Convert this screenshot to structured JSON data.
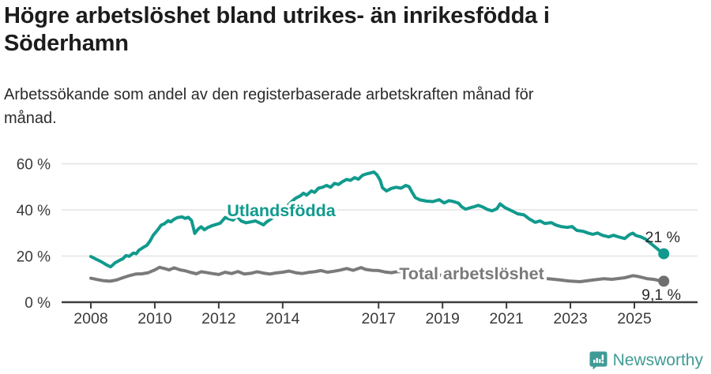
{
  "header": {
    "title": "Högre arbetslöshet bland utrikes- än inrikesfödda i Söderhamn",
    "title_lines": [
      "Högre arbetslöshet bland utrikes- än inrikesfödda i",
      "Söderhamn"
    ],
    "subtitle": "Arbetssökande som andel av den registerbaserade arbetskraften månad för månad.",
    "subtitle_lines": [
      "Arbetssökande som andel av den registerbaserade arbetskraften månad för",
      "månad."
    ]
  },
  "footer": {
    "brand": "Newsworthy"
  },
  "chart_data": {
    "type": "line",
    "unit": "%",
    "grid": true,
    "xlim": [
      2007.6,
      2026.3
    ],
    "ylim": [
      0,
      60
    ],
    "x_ticks": [
      {
        "v": 2008,
        "label": "2008"
      },
      {
        "v": 2010,
        "label": "2010"
      },
      {
        "v": 2012,
        "label": "2012"
      },
      {
        "v": 2014,
        "label": "2014"
      },
      {
        "v": 2017,
        "label": "2017"
      },
      {
        "v": 2019,
        "label": "2019"
      },
      {
        "v": 2021,
        "label": "2021"
      },
      {
        "v": 2023,
        "label": "2023"
      },
      {
        "v": 2025,
        "label": "2025"
      }
    ],
    "y_ticks": [
      {
        "v": 0,
        "label": "0 %"
      },
      {
        "v": 20,
        "label": "20 %"
      },
      {
        "v": 40,
        "label": "40 %"
      },
      {
        "v": 60,
        "label": "60 %"
      }
    ],
    "colors": {
      "foreign_born": "#109a8d",
      "total": "#7a7a7a",
      "grid": "#e3e3e3",
      "axis": "#3d3d3d",
      "tick_text": "#3a3a3a",
      "end_label_text": "#2a2a2a",
      "end_dot_total": "#6f6f6f",
      "brand_teal": "#3f9b95"
    },
    "series": [
      {
        "name": "Utlandsfödda",
        "color": "#109a8d",
        "end_label": "21 %",
        "latest_value": 21,
        "points": [
          [
            2008.0,
            19.8
          ],
          [
            2008.17,
            18.6
          ],
          [
            2008.33,
            17.5
          ],
          [
            2008.5,
            16.1
          ],
          [
            2008.62,
            15.3
          ],
          [
            2008.75,
            17.0
          ],
          [
            2008.92,
            18.3
          ],
          [
            2009.0,
            18.8
          ],
          [
            2009.1,
            20.2
          ],
          [
            2009.2,
            19.9
          ],
          [
            2009.33,
            21.3
          ],
          [
            2009.42,
            21.0
          ],
          [
            2009.5,
            22.5
          ],
          [
            2009.67,
            24.0
          ],
          [
            2009.75,
            24.6
          ],
          [
            2009.85,
            26.5
          ],
          [
            2009.95,
            29.0
          ],
          [
            2010.1,
            31.5
          ],
          [
            2010.2,
            33.4
          ],
          [
            2010.3,
            34.0
          ],
          [
            2010.42,
            35.3
          ],
          [
            2010.5,
            34.8
          ],
          [
            2010.6,
            35.9
          ],
          [
            2010.7,
            36.6
          ],
          [
            2010.85,
            37.0
          ],
          [
            2010.95,
            36.3
          ],
          [
            2011.05,
            36.8
          ],
          [
            2011.15,
            35.4
          ],
          [
            2011.25,
            29.8
          ],
          [
            2011.35,
            31.6
          ],
          [
            2011.45,
            32.7
          ],
          [
            2011.55,
            31.4
          ],
          [
            2011.65,
            32.3
          ],
          [
            2011.8,
            33.2
          ],
          [
            2011.95,
            33.8
          ],
          [
            2012.05,
            34.3
          ],
          [
            2012.2,
            36.7
          ],
          [
            2012.35,
            36.0
          ],
          [
            2012.45,
            35.6
          ],
          [
            2012.57,
            37.3
          ],
          [
            2012.7,
            35.2
          ],
          [
            2012.85,
            34.4
          ],
          [
            2013.0,
            34.8
          ],
          [
            2013.15,
            35.2
          ],
          [
            2013.3,
            34.2
          ],
          [
            2013.4,
            33.5
          ],
          [
            2013.5,
            34.8
          ],
          [
            2013.65,
            36.2
          ],
          [
            2013.8,
            37.6
          ],
          [
            2013.95,
            39.2
          ],
          [
            2014.1,
            41.0
          ],
          [
            2014.25,
            43.2
          ],
          [
            2014.4,
            45.0
          ],
          [
            2014.55,
            46.1
          ],
          [
            2014.65,
            47.2
          ],
          [
            2014.75,
            46.4
          ],
          [
            2014.9,
            48.2
          ],
          [
            2015.0,
            47.6
          ],
          [
            2015.12,
            49.4
          ],
          [
            2015.25,
            49.8
          ],
          [
            2015.37,
            50.6
          ],
          [
            2015.5,
            49.8
          ],
          [
            2015.62,
            51.5
          ],
          [
            2015.75,
            51.0
          ],
          [
            2015.87,
            52.2
          ],
          [
            2016.0,
            53.2
          ],
          [
            2016.12,
            52.8
          ],
          [
            2016.25,
            54.0
          ],
          [
            2016.37,
            53.3
          ],
          [
            2016.5,
            55.0
          ],
          [
            2016.62,
            55.6
          ],
          [
            2016.75,
            56.0
          ],
          [
            2016.85,
            56.4
          ],
          [
            2016.95,
            55.2
          ],
          [
            2017.05,
            52.8
          ],
          [
            2017.12,
            49.6
          ],
          [
            2017.25,
            48.2
          ],
          [
            2017.4,
            49.3
          ],
          [
            2017.55,
            49.8
          ],
          [
            2017.7,
            49.4
          ],
          [
            2017.85,
            50.6
          ],
          [
            2017.95,
            50.1
          ],
          [
            2018.05,
            47.6
          ],
          [
            2018.15,
            45.3
          ],
          [
            2018.3,
            44.3
          ],
          [
            2018.5,
            43.8
          ],
          [
            2018.7,
            43.6
          ],
          [
            2018.9,
            44.4
          ],
          [
            2019.05,
            43.0
          ],
          [
            2019.2,
            44.0
          ],
          [
            2019.35,
            43.6
          ],
          [
            2019.5,
            42.9
          ],
          [
            2019.6,
            41.3
          ],
          [
            2019.72,
            40.3
          ],
          [
            2019.88,
            41.0
          ],
          [
            2020.0,
            41.4
          ],
          [
            2020.12,
            42.0
          ],
          [
            2020.25,
            41.3
          ],
          [
            2020.4,
            40.2
          ],
          [
            2020.55,
            39.6
          ],
          [
            2020.7,
            40.5
          ],
          [
            2020.8,
            42.6
          ],
          [
            2020.95,
            41.0
          ],
          [
            2021.15,
            39.7
          ],
          [
            2021.35,
            38.3
          ],
          [
            2021.55,
            37.8
          ],
          [
            2021.7,
            36.2
          ],
          [
            2021.9,
            34.6
          ],
          [
            2022.05,
            35.2
          ],
          [
            2022.2,
            34.1
          ],
          [
            2022.4,
            34.5
          ],
          [
            2022.55,
            33.4
          ],
          [
            2022.7,
            32.8
          ],
          [
            2022.9,
            32.4
          ],
          [
            2023.05,
            32.8
          ],
          [
            2023.2,
            31.1
          ],
          [
            2023.4,
            30.7
          ],
          [
            2023.55,
            30.0
          ],
          [
            2023.7,
            29.4
          ],
          [
            2023.85,
            30.0
          ],
          [
            2024.0,
            29.0
          ],
          [
            2024.2,
            28.3
          ],
          [
            2024.35,
            29.0
          ],
          [
            2024.5,
            28.3
          ],
          [
            2024.7,
            27.6
          ],
          [
            2024.85,
            29.3
          ],
          [
            2024.95,
            29.9
          ],
          [
            2025.05,
            28.9
          ],
          [
            2025.2,
            28.3
          ],
          [
            2025.35,
            27.3
          ],
          [
            2025.5,
            25.6
          ],
          [
            2025.65,
            23.9
          ],
          [
            2025.8,
            22.2
          ],
          [
            2025.92,
            21.0
          ]
        ]
      },
      {
        "name": "Total arbetslöshet",
        "color": "#7a7a7a",
        "end_label": "9,1 %",
        "latest_value": 9.1,
        "points": [
          [
            2008.0,
            10.4
          ],
          [
            2008.2,
            9.8
          ],
          [
            2008.4,
            9.3
          ],
          [
            2008.6,
            9.1
          ],
          [
            2008.8,
            9.6
          ],
          [
            2009.0,
            10.6
          ],
          [
            2009.2,
            11.5
          ],
          [
            2009.4,
            12.2
          ],
          [
            2009.6,
            12.3
          ],
          [
            2009.8,
            12.8
          ],
          [
            2010.0,
            14.0
          ],
          [
            2010.15,
            15.1
          ],
          [
            2010.3,
            14.6
          ],
          [
            2010.45,
            14.0
          ],
          [
            2010.6,
            14.9
          ],
          [
            2010.8,
            14.0
          ],
          [
            2010.95,
            13.6
          ],
          [
            2011.1,
            13.0
          ],
          [
            2011.3,
            12.3
          ],
          [
            2011.45,
            13.2
          ],
          [
            2011.6,
            12.9
          ],
          [
            2011.8,
            12.4
          ],
          [
            2012.0,
            12.0
          ],
          [
            2012.2,
            13.0
          ],
          [
            2012.4,
            12.4
          ],
          [
            2012.6,
            13.3
          ],
          [
            2012.8,
            12.2
          ],
          [
            2013.0,
            12.5
          ],
          [
            2013.2,
            13.2
          ],
          [
            2013.4,
            12.6
          ],
          [
            2013.6,
            12.2
          ],
          [
            2013.8,
            12.7
          ],
          [
            2014.0,
            13.0
          ],
          [
            2014.2,
            13.5
          ],
          [
            2014.4,
            12.8
          ],
          [
            2014.6,
            12.4
          ],
          [
            2014.8,
            12.9
          ],
          [
            2015.0,
            13.2
          ],
          [
            2015.2,
            13.7
          ],
          [
            2015.4,
            13.0
          ],
          [
            2015.6,
            13.4
          ],
          [
            2015.8,
            13.9
          ],
          [
            2016.0,
            14.6
          ],
          [
            2016.2,
            13.8
          ],
          [
            2016.45,
            15.0
          ],
          [
            2016.6,
            14.2
          ],
          [
            2016.8,
            13.8
          ],
          [
            2017.0,
            13.7
          ],
          [
            2017.2,
            13.1
          ],
          [
            2017.4,
            12.8
          ],
          [
            2017.6,
            13.3
          ],
          [
            2017.8,
            13.0
          ],
          [
            2018.0,
            12.4
          ],
          [
            2018.25,
            12.0
          ],
          [
            2018.5,
            11.8
          ],
          [
            2018.75,
            12.1
          ],
          [
            2019.0,
            11.6
          ],
          [
            2019.25,
            11.2
          ],
          [
            2019.5,
            11.0
          ],
          [
            2019.75,
            11.1
          ],
          [
            2020.0,
            11.3
          ],
          [
            2020.25,
            12.0
          ],
          [
            2020.5,
            11.8
          ],
          [
            2020.75,
            11.5
          ],
          [
            2021.0,
            11.2
          ],
          [
            2021.25,
            10.9
          ],
          [
            2021.5,
            10.6
          ],
          [
            2021.75,
            10.4
          ],
          [
            2022.0,
            10.3
          ],
          [
            2022.3,
            10.2
          ],
          [
            2022.5,
            9.9
          ],
          [
            2022.7,
            9.6
          ],
          [
            2022.95,
            9.2
          ],
          [
            2023.3,
            8.9
          ],
          [
            2023.7,
            9.6
          ],
          [
            2024.05,
            10.2
          ],
          [
            2024.3,
            9.9
          ],
          [
            2024.7,
            10.6
          ],
          [
            2024.95,
            11.5
          ],
          [
            2025.1,
            11.2
          ],
          [
            2025.4,
            10.2
          ],
          [
            2025.6,
            9.9
          ],
          [
            2025.8,
            9.3
          ],
          [
            2025.92,
            9.1
          ]
        ]
      }
    ]
  }
}
